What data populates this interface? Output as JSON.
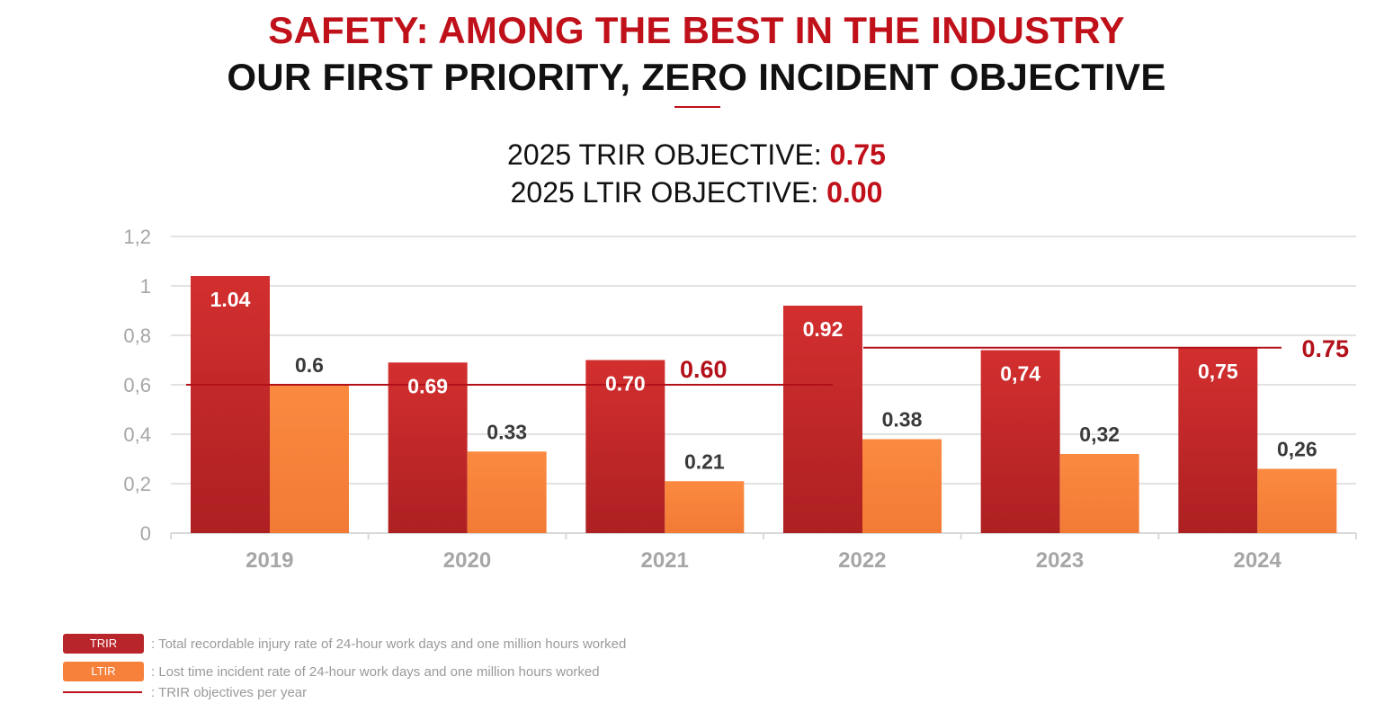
{
  "header": {
    "title": "SAFETY: AMONG THE BEST IN THE INDUSTRY",
    "subtitle": "OUR FIRST PRIORITY, ZERO INCIDENT OBJECTIVE"
  },
  "objectives": {
    "trir_label": "2025 TRIR OBJECTIVE: ",
    "trir_value": "0.75",
    "ltir_label": "2025 LTIR OBJECTIVE: ",
    "ltir_value": "0.00"
  },
  "legend": {
    "trir_swatch": "TRIR",
    "trir_text": ": Total recordable injury rate of 24-hour work days and one million hours worked",
    "ltir_swatch": "LTIR",
    "ltir_text": ": Lost time incident rate of 24-hour work days and one million hours worked",
    "objective_text": ": TRIR objectives per year"
  },
  "colors": {
    "trir": "#c0252a",
    "ltir": "#f7803a",
    "objective": "#b3111a",
    "axis_text": "#a6a6a6",
    "grid": "#d9d9d9"
  },
  "chart_data": {
    "type": "bar",
    "categories": [
      "2019",
      "2020",
      "2021",
      "2022",
      "2023",
      "2024"
    ],
    "series": [
      {
        "name": "TRIR",
        "values": [
          1.04,
          0.69,
          0.7,
          0.92,
          0.74,
          0.75
        ],
        "labels": [
          "1.04",
          "0.69",
          "0.70",
          "0.92",
          "0,74",
          "0,75"
        ]
      },
      {
        "name": "LTIR",
        "values": [
          0.6,
          0.33,
          0.21,
          0.38,
          0.32,
          0.26
        ],
        "labels": [
          "0.6",
          "0.33",
          "0.21",
          "0.38",
          "0,32",
          "0,26"
        ]
      }
    ],
    "objective_lines": [
      {
        "value": 0.6,
        "label": "0.60",
        "from": "2019",
        "to": "2022"
      },
      {
        "value": 0.75,
        "label": "0.75",
        "from": "2022",
        "to": "2024"
      }
    ],
    "ylim": [
      0,
      1.2
    ],
    "yticks": [
      "0",
      "0,2",
      "0,4",
      "0,6",
      "0,8",
      "1",
      "1,2"
    ],
    "grid": true,
    "legend_position": "bottom-left"
  }
}
